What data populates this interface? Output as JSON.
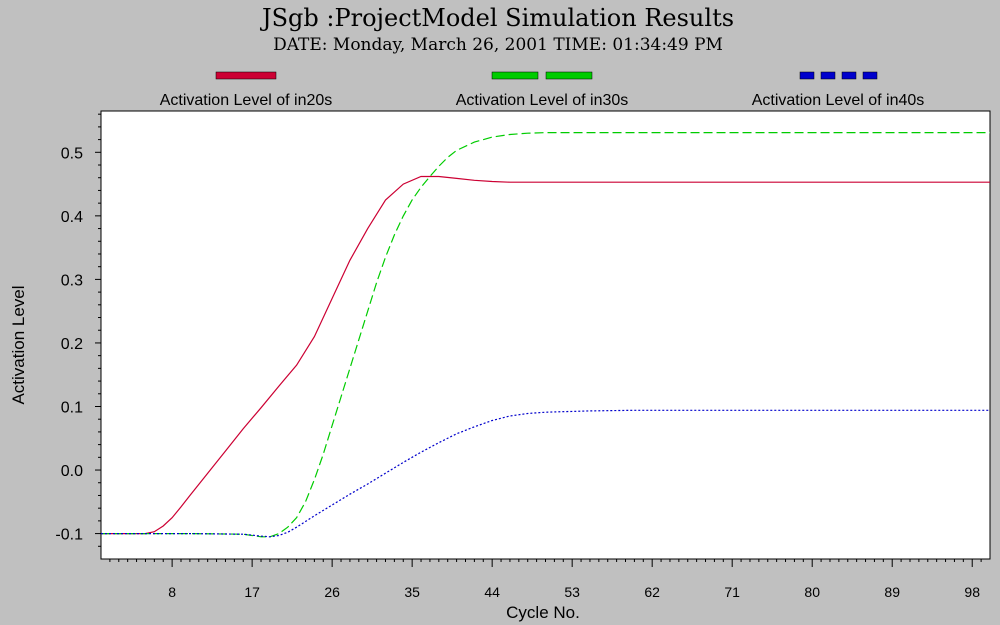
{
  "chart_data": {
    "type": "line",
    "title": "JSgb :ProjectModel Simulation Results",
    "subtitle": "DATE: Monday, March 26, 2001  TIME: 01:34:49 PM",
    "xlabel": "Cycle No.",
    "ylabel": "Activation Level",
    "xlim": [
      0,
      100
    ],
    "ylim": [
      -0.14,
      0.565
    ],
    "x_ticks": [
      8,
      17,
      26,
      35,
      44,
      53,
      62,
      71,
      80,
      89,
      98
    ],
    "y_ticks": [
      -0.1,
      0.0,
      0.1,
      0.2,
      0.3,
      0.4,
      0.5
    ],
    "y_tick_labels": [
      "-0.1",
      "0.0",
      "0.1",
      "0.2",
      "0.3",
      "0.4",
      "0.5"
    ],
    "grid": false,
    "legend_position": "top",
    "series": [
      {
        "name": "Activation Level of in20s",
        "color": "#cc0033",
        "style": "solid",
        "x": [
          0,
          3,
          5,
          6,
          7,
          8,
          9,
          10,
          12,
          14,
          16,
          18,
          20,
          22,
          24,
          26,
          28,
          30,
          32,
          34,
          36,
          38,
          40,
          42,
          44,
          46,
          48,
          50,
          55,
          60,
          70,
          80,
          90,
          100
        ],
        "y": [
          -0.1,
          -0.1,
          -0.1,
          -0.097,
          -0.088,
          -0.075,
          -0.058,
          -0.04,
          -0.005,
          0.03,
          0.065,
          0.098,
          0.132,
          0.165,
          0.21,
          0.27,
          0.33,
          0.38,
          0.425,
          0.45,
          0.462,
          0.462,
          0.459,
          0.456,
          0.454,
          0.453,
          0.453,
          0.453,
          0.453,
          0.453,
          0.453,
          0.453,
          0.453,
          0.453
        ]
      },
      {
        "name": "Activation Level of in30s",
        "color": "#00cc00",
        "style": "dashed",
        "x": [
          0,
          10,
          16,
          18,
          19,
          20,
          21,
          22,
          23,
          24,
          25,
          26,
          27,
          28,
          29,
          30,
          31,
          32,
          33,
          34,
          35,
          36,
          37,
          38,
          39,
          40,
          42,
          44,
          46,
          48,
          50,
          60,
          70,
          80,
          90,
          100
        ],
        "y": [
          -0.1,
          -0.1,
          -0.101,
          -0.105,
          -0.105,
          -0.1,
          -0.09,
          -0.075,
          -0.05,
          -0.015,
          0.025,
          0.07,
          0.115,
          0.16,
          0.205,
          0.25,
          0.295,
          0.335,
          0.37,
          0.4,
          0.425,
          0.445,
          0.462,
          0.478,
          0.492,
          0.503,
          0.516,
          0.524,
          0.528,
          0.53,
          0.531,
          0.531,
          0.531,
          0.531,
          0.531,
          0.531
        ]
      },
      {
        "name": "Activation Level of in40s",
        "color": "#0000cc",
        "style": "dotted",
        "x": [
          0,
          10,
          16,
          18,
          19,
          20,
          21,
          22,
          24,
          26,
          28,
          30,
          32,
          34,
          36,
          38,
          40,
          42,
          44,
          46,
          48,
          50,
          55,
          60,
          70,
          80,
          90,
          100
        ],
        "y": [
          -0.1,
          -0.1,
          -0.101,
          -0.104,
          -0.105,
          -0.103,
          -0.098,
          -0.09,
          -0.072,
          -0.055,
          -0.038,
          -0.022,
          -0.005,
          0.012,
          0.028,
          0.043,
          0.057,
          0.068,
          0.078,
          0.085,
          0.089,
          0.091,
          0.093,
          0.094,
          0.094,
          0.094,
          0.094,
          0.094
        ]
      }
    ]
  }
}
